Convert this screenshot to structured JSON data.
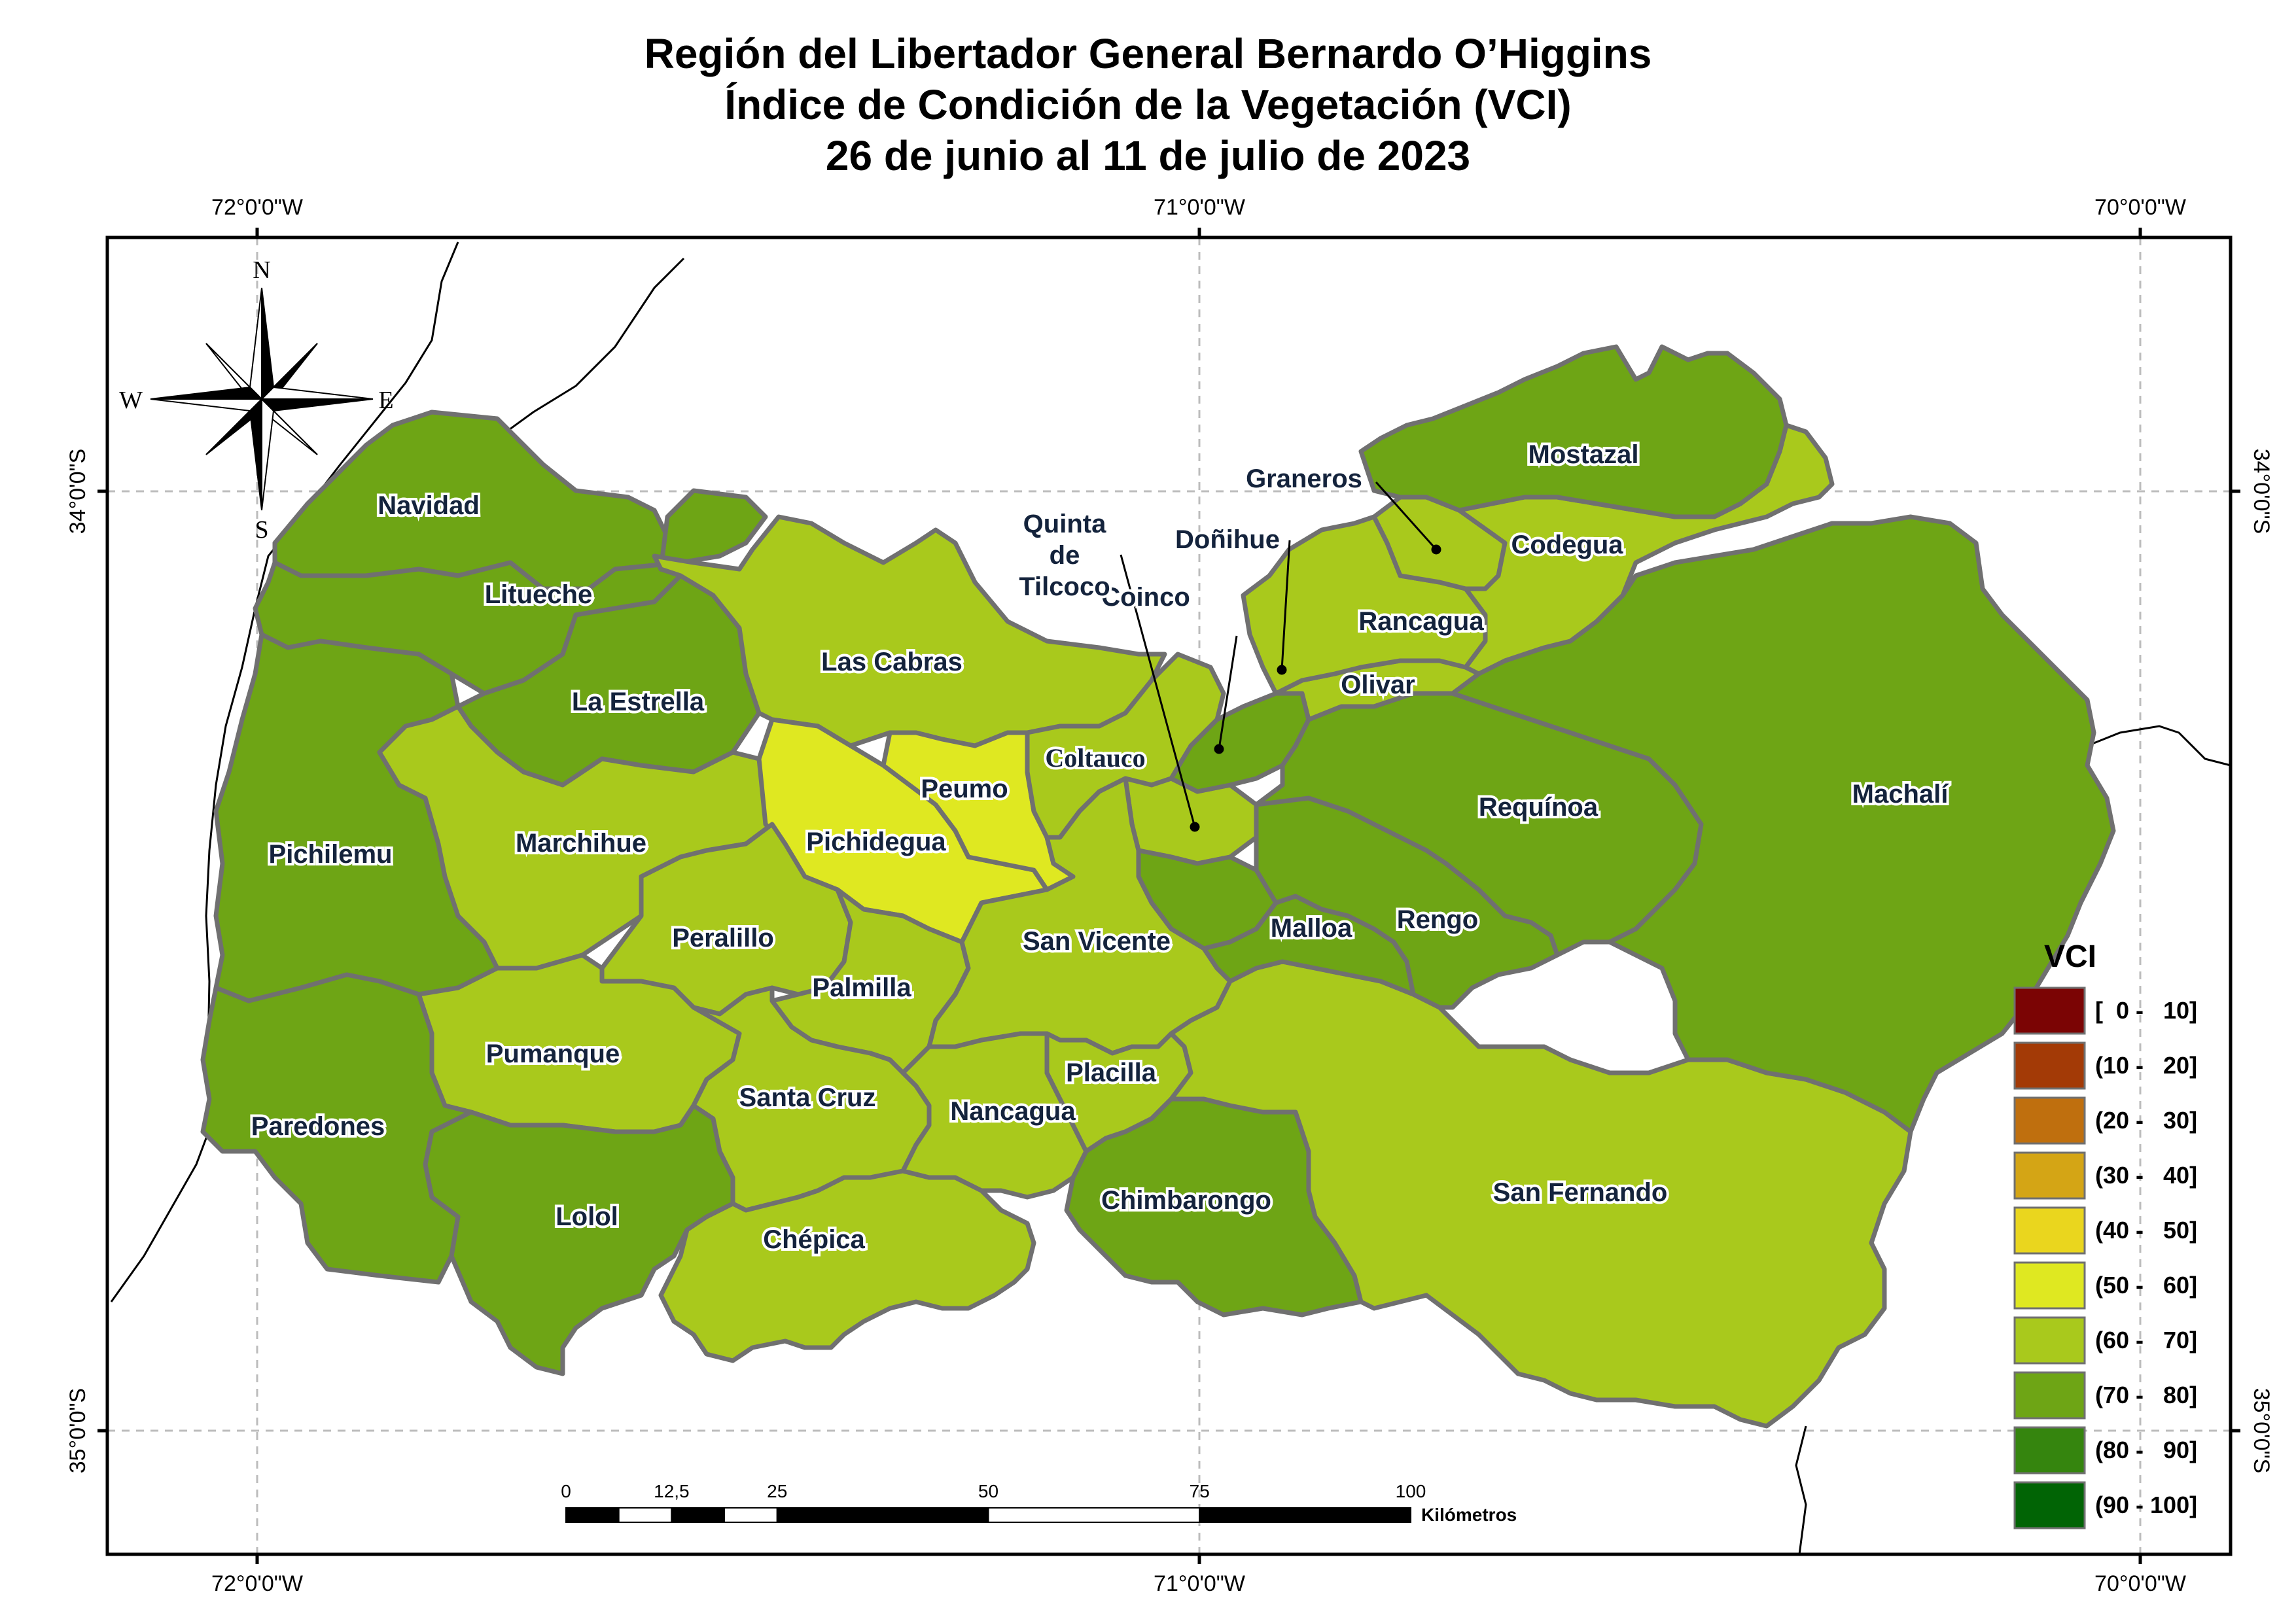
{
  "title": {
    "line1": "Región del Libertador General Bernardo O’Higgins",
    "line2": "Índice de Condición de la Vegetación (VCI)",
    "line3": "26 de junio al 11 de julio de 2023"
  },
  "graticule": {
    "lon_labels": [
      "72°0'0\"W",
      "71°0'0\"W",
      "70°0'0\"W"
    ],
    "lat_labels": [
      "34°0'0\"S",
      "35°0'0\"S"
    ]
  },
  "compass": {
    "n": "N",
    "s": "S",
    "e": "E",
    "w": "W"
  },
  "colors": {
    "boundary": "#707070",
    "frame": "#000000",
    "vci_50_60": "#dfe821",
    "vci_60_70": "#a9c91c",
    "vci_70_80": "#6ea515"
  },
  "comunas": [
    {
      "name": "Navidad",
      "vci_class": "(70 - 80]"
    },
    {
      "name": "Litueche",
      "vci_class": "(70 - 80]"
    },
    {
      "name": "La Estrella",
      "vci_class": "(70 - 80]"
    },
    {
      "name": "Pichilemu",
      "vci_class": "(70 - 80]"
    },
    {
      "name": "Marchihue",
      "vci_class": "(60 - 70]"
    },
    {
      "name": "Las Cabras",
      "vci_class": "(60 - 70]"
    },
    {
      "name": "Peumo",
      "vci_class": "(50 - 60]"
    },
    {
      "name": "Pichidegua",
      "vci_class": "(50 - 60]"
    },
    {
      "name": "Coltauco",
      "vci_class": "(60 - 70]"
    },
    {
      "name": "Peralillo",
      "vci_class": "(60 - 70]"
    },
    {
      "name": "Palmilla",
      "vci_class": "(60 - 70]"
    },
    {
      "name": "San Vicente",
      "vci_class": "(60 - 70]"
    },
    {
      "name": "Pumanque",
      "vci_class": "(60 - 70]"
    },
    {
      "name": "Paredones",
      "vci_class": "(70 - 80]"
    },
    {
      "name": "Lolol",
      "vci_class": "(70 - 80]"
    },
    {
      "name": "Santa Cruz",
      "vci_class": "(60 - 70]"
    },
    {
      "name": "Chépica",
      "vci_class": "(60 - 70]"
    },
    {
      "name": "Nancagua",
      "vci_class": "(60 - 70]"
    },
    {
      "name": "Placilla",
      "vci_class": "(60 - 70]"
    },
    {
      "name": "Chimbarongo",
      "vci_class": "(70 - 80]"
    },
    {
      "name": "San Fernando",
      "vci_class": "(60 - 70]"
    },
    {
      "name": "Malloa",
      "vci_class": "(70 - 80]"
    },
    {
      "name": "Rengo",
      "vci_class": "(70 - 80]"
    },
    {
      "name": "Requínoa",
      "vci_class": "(70 - 80]"
    },
    {
      "name": "Machalí",
      "vci_class": "(70 - 80]"
    },
    {
      "name": "Olivar",
      "vci_class": "(60 - 70]"
    },
    {
      "name": "Rancagua",
      "vci_class": "(60 - 70]"
    },
    {
      "name": "Codegua",
      "vci_class": "(60 - 70]"
    },
    {
      "name": "Mostazal",
      "vci_class": "(70 - 80]"
    },
    {
      "name": "Graneros",
      "vci_class": "(60 - 70]"
    },
    {
      "name": "Doñihue",
      "vci_class": "(70 - 80]"
    },
    {
      "name": "Coinco",
      "vci_class": "(60 - 70]"
    },
    {
      "name": "Quinta de Tilcoco",
      "vci_class": "(60 - 70]",
      "label_lines": [
        "Quinta",
        "de",
        "Tilcoco"
      ]
    }
  ],
  "legend": {
    "title": "VCI",
    "classes": [
      {
        "label": "[  0 -   10]",
        "color": "#7b0404"
      },
      {
        "label": "(10 -   20]",
        "color": "#a33a06"
      },
      {
        "label": "(20 -   30]",
        "color": "#bf6f0e"
      },
      {
        "label": "(30 -   40]",
        "color": "#d4a515"
      },
      {
        "label": "(40 -   50]",
        "color": "#ead61e"
      },
      {
        "label": "(50 -   60]",
        "color": "#dfe821"
      },
      {
        "label": "(60 -   70]",
        "color": "#a9c91c"
      },
      {
        "label": "(70 -   80]",
        "color": "#6ea515"
      },
      {
        "label": "(80 -   90]",
        "color": "#35850e"
      },
      {
        "label": "(90 - 100]",
        "color": "#016405"
      }
    ]
  },
  "scale_bar": {
    "ticks": [
      "0",
      "12,5",
      "25",
      "50",
      "75",
      "100"
    ],
    "tick_values": [
      0,
      12.5,
      25,
      50,
      75,
      100
    ],
    "unit": "Kilómetros"
  }
}
